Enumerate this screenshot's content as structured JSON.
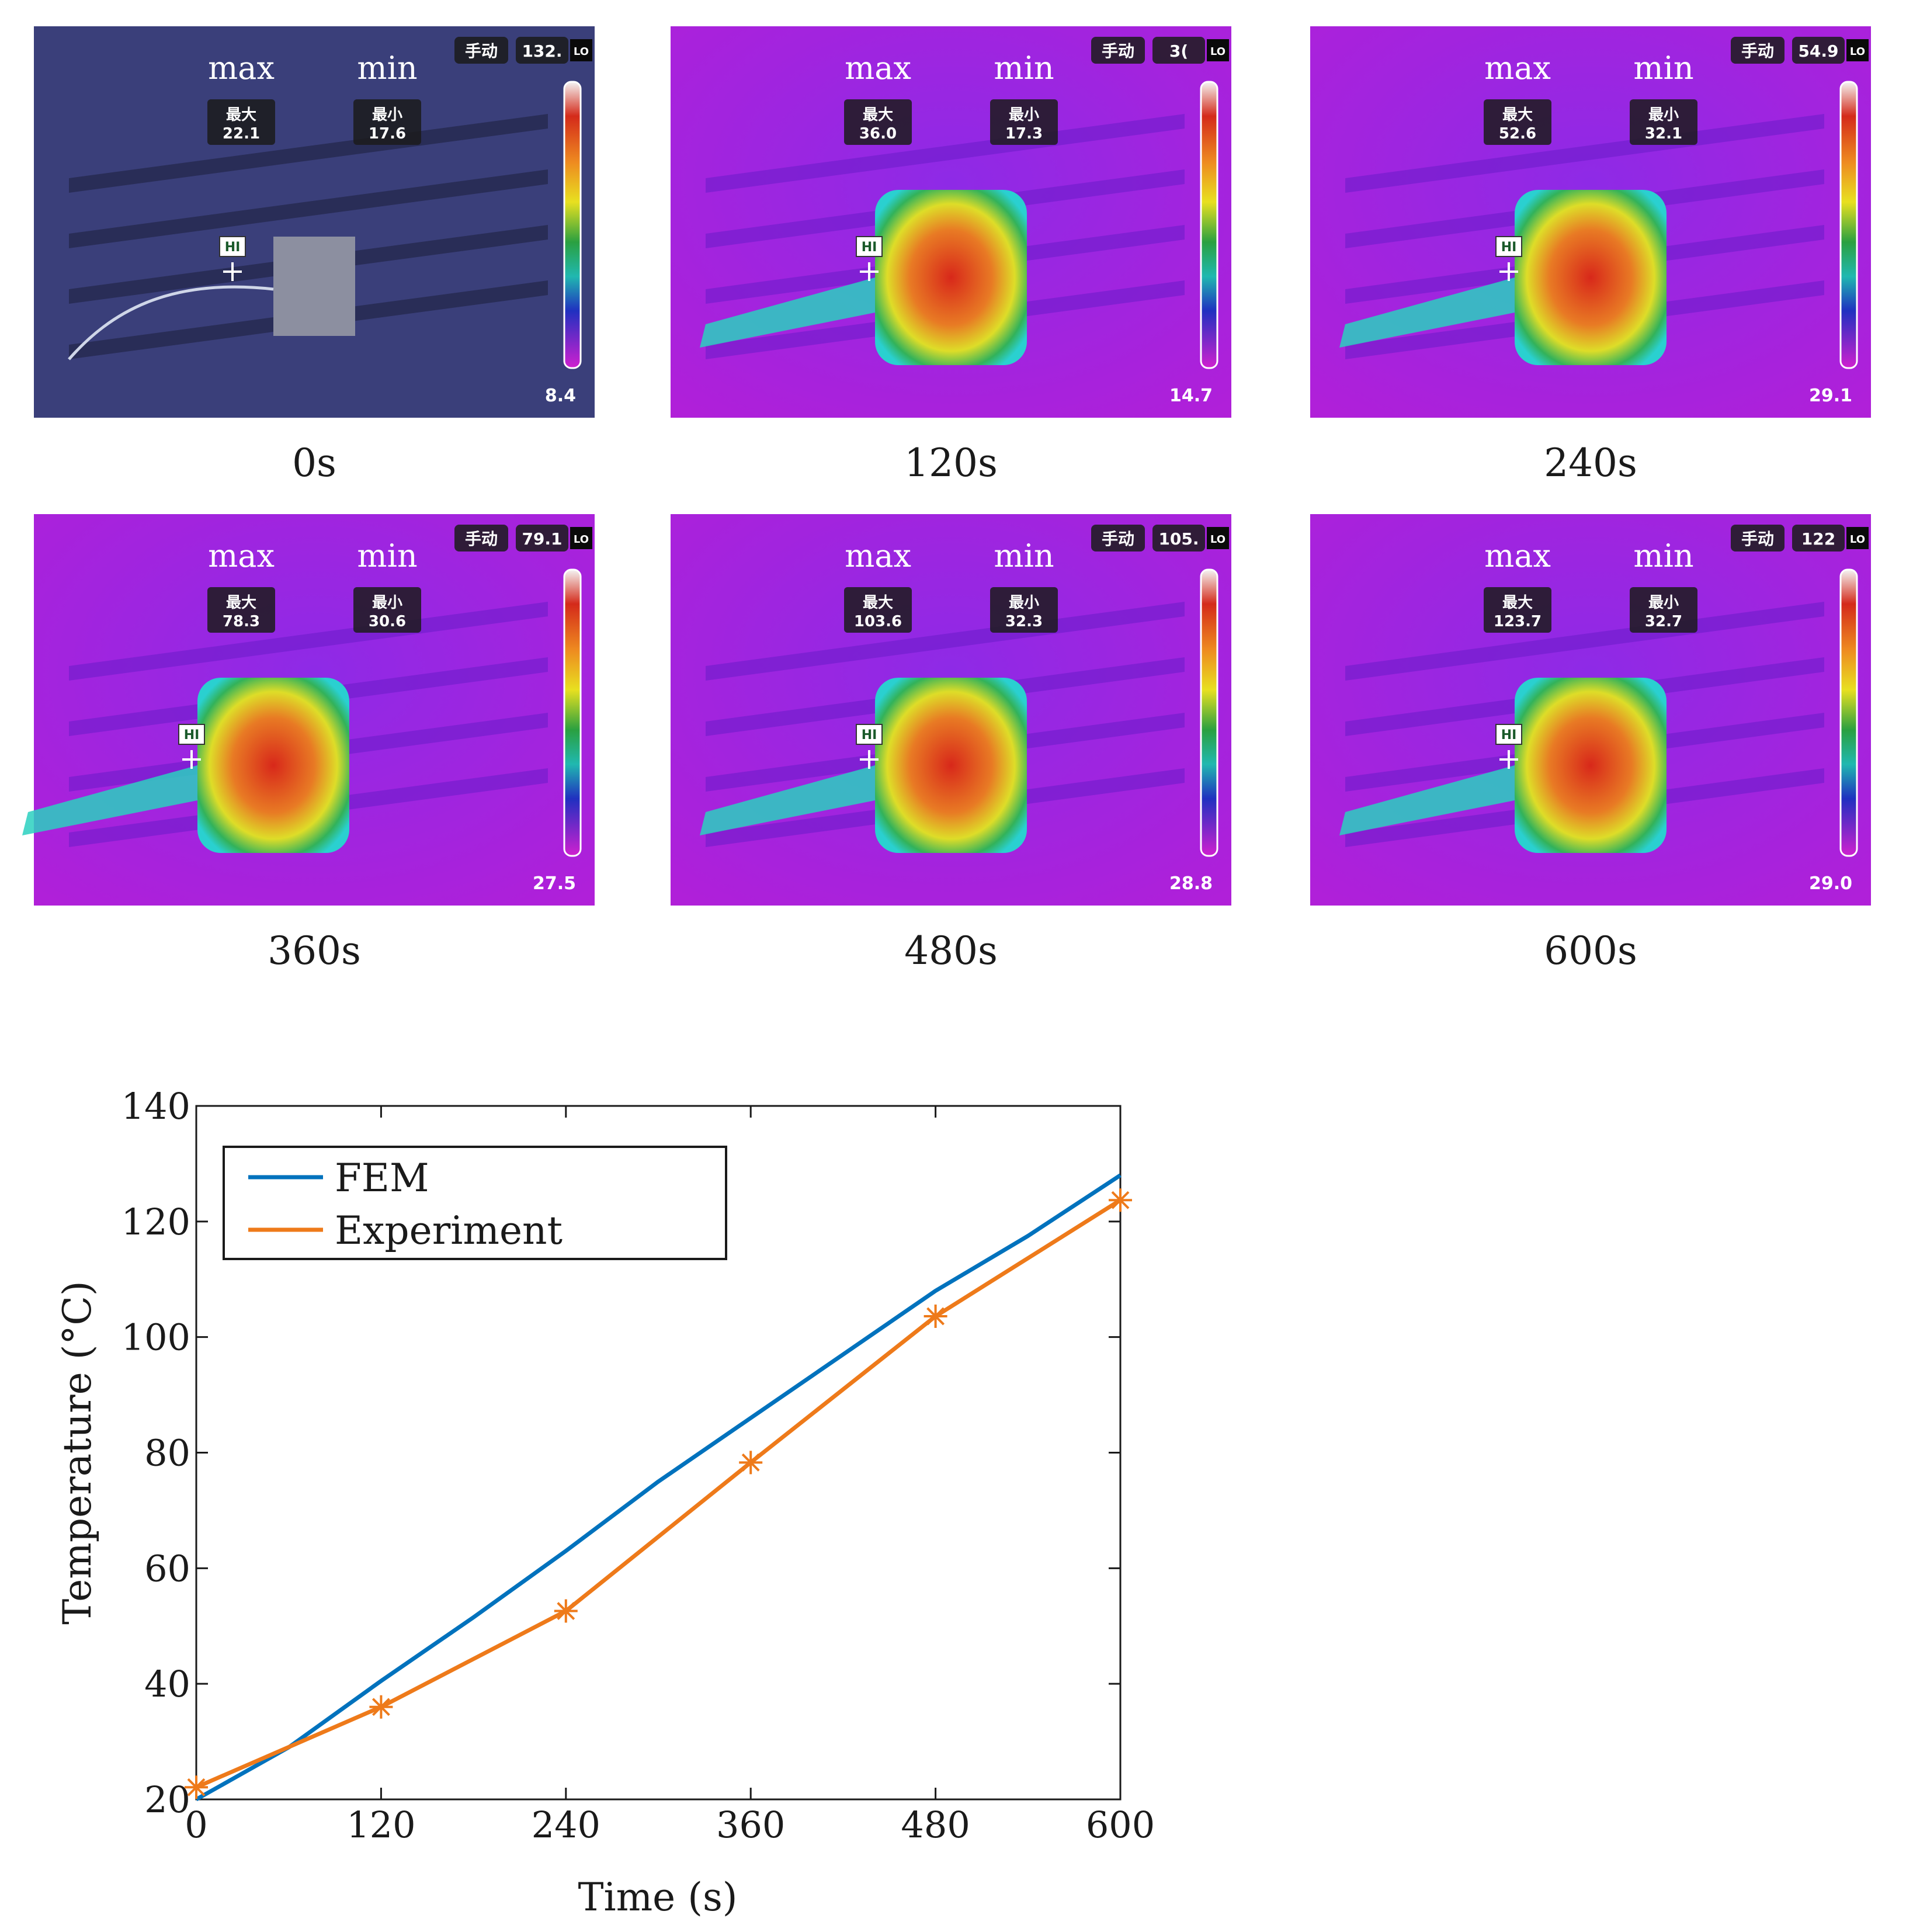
{
  "colors": {
    "fem": "#0072BD",
    "experiment": "#EE7A1A",
    "axis": "#1a1a1a",
    "thermal_bg": "#8a1fe0",
    "photo_bg": "#3a3f7a"
  },
  "thermal_panels": [
    {
      "time_label": "0s",
      "max_word": "max",
      "min_word": "min",
      "max_cn": "最大",
      "min_cn": "最小",
      "max_val": "22.1",
      "min_val": "17.6",
      "mode_cn": "手动",
      "top_scale": "132.",
      "bottom_scale": "8.4",
      "hi_tag": "HI",
      "lo_tag": "LO",
      "style": "photo"
    },
    {
      "time_label": "120s",
      "max_word": "max",
      "min_word": "min",
      "max_cn": "最大",
      "min_cn": "最小",
      "max_val": "36.0",
      "min_val": "17.3",
      "mode_cn": "手动",
      "top_scale": "3(",
      "bottom_scale": "14.7",
      "hi_tag": "HI",
      "lo_tag": "LO",
      "style": "thermal"
    },
    {
      "time_label": "240s",
      "max_word": "max",
      "min_word": "min",
      "max_cn": "最大",
      "min_cn": "最小",
      "max_val": "52.6",
      "min_val": "32.1",
      "mode_cn": "手动",
      "top_scale": "54.9",
      "bottom_scale": "29.1",
      "hi_tag": "HI",
      "lo_tag": "LO",
      "style": "thermal"
    },
    {
      "time_label": "360s",
      "max_word": "max",
      "min_word": "min",
      "max_cn": "最大",
      "min_cn": "最小",
      "max_val": "78.3",
      "min_val": "30.6",
      "mode_cn": "手动",
      "top_scale": "79.1",
      "bottom_scale": "27.5",
      "hi_tag": "HI",
      "lo_tag": "LO",
      "style": "thermal"
    },
    {
      "time_label": "480s",
      "max_word": "max",
      "min_word": "min",
      "max_cn": "最大",
      "min_cn": "最小",
      "max_val": "103.6",
      "min_val": "32.3",
      "mode_cn": "手动",
      "top_scale": "105.",
      "bottom_scale": "28.8",
      "hi_tag": "HI",
      "lo_tag": "LO",
      "style": "thermal"
    },
    {
      "time_label": "600s",
      "max_word": "max",
      "min_word": "min",
      "max_cn": "最大",
      "min_cn": "最小",
      "max_val": "123.7",
      "min_val": "32.7",
      "mode_cn": "手动",
      "top_scale": "122",
      "bottom_scale": "29.0",
      "hi_tag": "HI",
      "lo_tag": "LO",
      "style": "thermal"
    }
  ],
  "chart_data": {
    "type": "line",
    "title": "",
    "xlabel": "Time (s)",
    "ylabel": "Temperature (°C)",
    "xlim": [
      0,
      600
    ],
    "ylim": [
      20,
      140
    ],
    "xticks": [
      0,
      120,
      240,
      360,
      480,
      600
    ],
    "yticks": [
      20,
      40,
      60,
      80,
      100,
      120,
      140
    ],
    "grid": false,
    "legend_position": "top-left",
    "series": [
      {
        "name": "FEM",
        "marker": "none",
        "x": [
          0,
          60,
          120,
          180,
          240,
          300,
          360,
          420,
          480,
          540,
          600
        ],
        "y": [
          20,
          29,
          40.5,
          51.5,
          63,
          75,
          86,
          97,
          108,
          117.5,
          128
        ]
      },
      {
        "name": "Experiment",
        "marker": "asterisk",
        "x": [
          0,
          120,
          240,
          360,
          480,
          600
        ],
        "y": [
          22.1,
          36.0,
          52.6,
          78.3,
          103.6,
          123.7
        ]
      }
    ]
  }
}
